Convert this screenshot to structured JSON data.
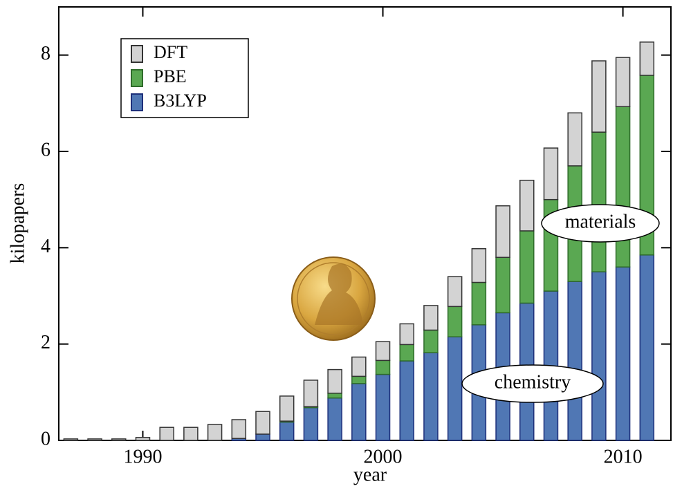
{
  "chart_data": {
    "type": "stacked-bar",
    "x": [
      1987,
      1988,
      1989,
      1990,
      1991,
      1992,
      1993,
      1994,
      1995,
      1996,
      1997,
      1998,
      1999,
      2000,
      2001,
      2002,
      2003,
      2004,
      2005,
      2006,
      2007,
      2008,
      2009,
      2010,
      2011
    ],
    "series": [
      {
        "name": "DFT",
        "color": "#d3d3d3",
        "values": [
          0.03,
          0.03,
          0.03,
          0.06,
          0.27,
          0.27,
          0.33,
          0.39,
          0.47,
          0.52,
          0.55,
          0.49,
          0.4,
          0.39,
          0.43,
          0.51,
          0.62,
          0.7,
          1.07,
          1.05,
          1.07,
          1.1,
          1.48,
          1.02,
          0.69
        ]
      },
      {
        "name": "PBE",
        "color": "#5aa852",
        "values": [
          0,
          0,
          0,
          0,
          0,
          0,
          0,
          0,
          0,
          0.02,
          0.02,
          0.1,
          0.15,
          0.29,
          0.34,
          0.47,
          0.63,
          0.88,
          1.15,
          1.5,
          1.9,
          2.4,
          2.9,
          3.33,
          3.73
        ]
      },
      {
        "name": "B3LYP",
        "color": "#5077b4",
        "values": [
          0,
          0,
          0,
          0,
          0,
          0,
          0,
          0.04,
          0.13,
          0.38,
          0.68,
          0.88,
          1.18,
          1.37,
          1.65,
          1.82,
          2.15,
          2.4,
          2.65,
          2.85,
          3.1,
          3.3,
          3.5,
          3.6,
          3.85
        ]
      }
    ],
    "x_label": "year",
    "y_label": "kilopapers",
    "xlim": [
      1986.5,
      2012
    ],
    "xticks": [
      1990,
      2000,
      2010
    ],
    "ylim": [
      0,
      9
    ],
    "yticks": [
      0,
      2,
      4,
      6,
      8
    ],
    "legend": "upper-left",
    "annotations": [
      "materials",
      "chemistry"
    ]
  }
}
